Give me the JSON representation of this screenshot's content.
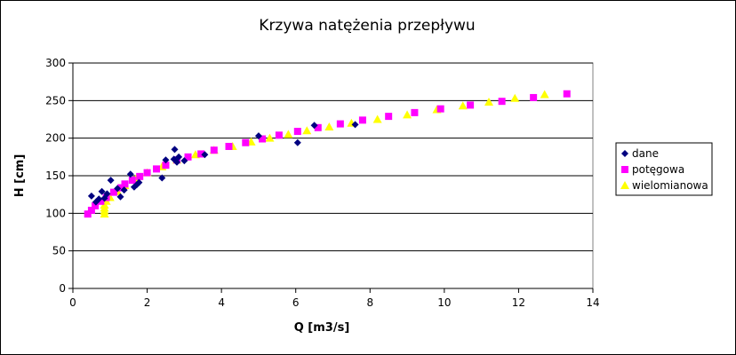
{
  "chart_data": {
    "type": "scatter",
    "title": "Krzywa natężenia przepływu",
    "xlabel": "Q [m3/s]",
    "ylabel": "H [cm]",
    "xlim": [
      0,
      14
    ],
    "ylim": [
      0,
      300
    ],
    "x_ticks": [
      0,
      2,
      4,
      6,
      8,
      10,
      12,
      14
    ],
    "y_ticks": [
      0,
      50,
      100,
      150,
      200,
      250,
      300
    ],
    "grid": "horizontal",
    "legend_position": "right",
    "series": [
      {
        "name": "dane",
        "marker": "diamond",
        "color": "#000080",
        "points": [
          [
            0.5,
            123
          ],
          [
            0.62,
            115
          ],
          [
            0.7,
            119
          ],
          [
            0.78,
            129
          ],
          [
            0.85,
            120
          ],
          [
            0.92,
            126
          ],
          [
            1.02,
            144
          ],
          [
            1.2,
            133
          ],
          [
            1.28,
            122
          ],
          [
            1.38,
            131
          ],
          [
            1.55,
            152
          ],
          [
            1.65,
            135
          ],
          [
            1.72,
            138
          ],
          [
            1.78,
            141
          ],
          [
            2.4,
            147
          ],
          [
            2.5,
            171
          ],
          [
            2.72,
            172
          ],
          [
            2.74,
            185
          ],
          [
            2.8,
            168
          ],
          [
            2.85,
            175
          ],
          [
            3.0,
            170
          ],
          [
            3.55,
            178
          ],
          [
            5.0,
            203
          ],
          [
            6.05,
            194
          ],
          [
            6.5,
            217
          ],
          [
            7.6,
            218
          ]
        ]
      },
      {
        "name": "potęgowa",
        "marker": "square",
        "color": "#ff00ff",
        "points": [
          [
            0.4,
            99
          ],
          [
            0.5,
            104
          ],
          [
            0.6,
            110
          ],
          [
            0.75,
            116
          ],
          [
            0.9,
            121
          ],
          [
            1.1,
            128
          ],
          [
            1.3,
            134
          ],
          [
            1.4,
            139
          ],
          [
            1.6,
            144
          ],
          [
            1.8,
            149
          ],
          [
            2.0,
            154
          ],
          [
            2.25,
            159
          ],
          [
            2.5,
            164
          ],
          [
            2.8,
            171
          ],
          [
            3.1,
            175
          ],
          [
            3.45,
            179
          ],
          [
            3.8,
            184
          ],
          [
            4.2,
            189
          ],
          [
            4.65,
            194
          ],
          [
            5.1,
            199
          ],
          [
            5.55,
            204
          ],
          [
            6.05,
            209
          ],
          [
            6.6,
            214
          ],
          [
            7.2,
            219
          ],
          [
            7.8,
            224
          ],
          [
            8.5,
            229
          ],
          [
            9.2,
            234
          ],
          [
            9.9,
            239
          ],
          [
            10.7,
            244
          ],
          [
            11.55,
            249
          ],
          [
            12.4,
            254
          ],
          [
            13.3,
            259
          ]
        ]
      },
      {
        "name": "wielomianowa",
        "marker": "triangle",
        "color": "#ffff00",
        "points": [
          [
            0.85,
            99
          ],
          [
            0.85,
            103
          ],
          [
            0.85,
            107
          ],
          [
            0.85,
            111
          ],
          [
            0.9,
            116
          ],
          [
            1.0,
            121
          ],
          [
            1.2,
            129
          ],
          [
            1.4,
            137
          ],
          [
            1.7,
            146
          ],
          [
            2.0,
            154
          ],
          [
            2.4,
            162
          ],
          [
            2.8,
            171
          ],
          [
            3.3,
            178
          ],
          [
            3.8,
            184
          ],
          [
            4.3,
            189
          ],
          [
            4.8,
            195
          ],
          [
            5.3,
            200
          ],
          [
            5.8,
            205
          ],
          [
            6.3,
            210
          ],
          [
            6.9,
            215
          ],
          [
            7.5,
            220
          ],
          [
            8.2,
            225
          ],
          [
            9.0,
            231
          ],
          [
            9.8,
            238
          ],
          [
            10.5,
            243
          ],
          [
            11.2,
            248
          ],
          [
            11.9,
            253
          ],
          [
            12.7,
            258
          ]
        ]
      }
    ]
  }
}
